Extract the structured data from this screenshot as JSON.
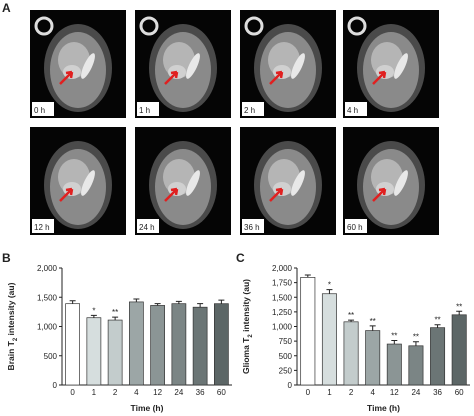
{
  "panel_a": {
    "panel_label": "A",
    "images": [
      {
        "label": "0 h"
      },
      {
        "label": "1 h"
      },
      {
        "label": "2 h"
      },
      {
        "label": "4 h"
      },
      {
        "label": "12 h"
      },
      {
        "label": "24 h"
      },
      {
        "label": "36 h"
      },
      {
        "label": "60 h"
      }
    ]
  },
  "chart_data": [
    {
      "type": "bar",
      "panel_label": "B",
      "y_label": {
        "prefix": "Brain T",
        "subscript": "2",
        "suffix": " intensity (au)"
      },
      "x_label": "Time (h)",
      "categories": [
        "0",
        "1",
        "2",
        "4",
        "12",
        "24",
        "36",
        "60"
      ],
      "values": [
        1390,
        1150,
        1110,
        1420,
        1360,
        1390,
        1330,
        1390
      ],
      "errors": [
        50,
        40,
        50,
        50,
        30,
        40,
        60,
        60
      ],
      "significance": [
        null,
        "*",
        "**",
        null,
        null,
        null,
        null,
        null
      ],
      "colors": [
        "#ffffff",
        "#d6dede",
        "#c3cccc",
        "#9ca6a6",
        "#8b9595",
        "#7b8585",
        "#6b7575",
        "#5c6666"
      ],
      "ylim": [
        0,
        2000
      ],
      "yticks": [
        0,
        500,
        {
          "value": 1000,
          "label": "1,000"
        },
        {
          "value": 1500,
          "label": "1,500"
        },
        {
          "value": 2000,
          "label": "2,000"
        }
      ]
    },
    {
      "type": "bar",
      "panel_label": "C",
      "y_label": {
        "prefix": "Glioma T",
        "subscript": "2",
        "suffix": " intensity (au)"
      },
      "x_label": "Time (h)",
      "categories": [
        "0",
        "1",
        "2",
        "4",
        "12",
        "24",
        "36",
        "60"
      ],
      "values": [
        1840,
        1560,
        1080,
        930,
        700,
        670,
        980,
        1200
      ],
      "errors": [
        40,
        70,
        30,
        80,
        60,
        70,
        50,
        60
      ],
      "significance": [
        null,
        "*",
        "**",
        "**",
        "**",
        "**",
        "**",
        "**"
      ],
      "colors": [
        "#ffffff",
        "#d6dede",
        "#c3cccc",
        "#9ca6a6",
        "#8b9595",
        "#7b8585",
        "#6b7575",
        "#5c6666"
      ],
      "ylim": [
        0,
        2000
      ],
      "yticks": [
        0,
        250,
        500,
        750,
        {
          "value": 1000,
          "label": "1,000"
        },
        {
          "value": 1250,
          "label": "1,250"
        },
        {
          "value": 1500,
          "label": "1,500"
        },
        {
          "value": 1750,
          "label": "1,750"
        },
        {
          "value": 2000,
          "label": "2,000"
        }
      ]
    }
  ]
}
